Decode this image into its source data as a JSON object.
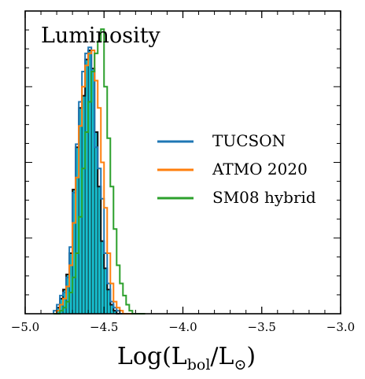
{
  "chart_data": {
    "type": "histogram",
    "title": "Luminosity",
    "xlabel_main": "Log(L",
    "xlabel_sub1": "bol",
    "xlabel_mid": "/L",
    "xlabel_sub2": "⊙",
    "xlabel_close": ")",
    "xlim": [
      -5.0,
      -3.0
    ],
    "ylim": [
      0,
      1.0
    ],
    "xticks": [
      -5.0,
      -4.5,
      -4.0,
      -3.5,
      -3.0
    ],
    "xtick_labels": [
      "−5.0",
      "−4.5",
      "−4.0",
      "−3.5",
      "−3.0"
    ],
    "legend_position": "center-right",
    "grid": false,
    "bin_edges": [
      -4.82,
      -4.8,
      -4.78,
      -4.76,
      -4.74,
      -4.72,
      -4.7,
      -4.68,
      -4.66,
      -4.64,
      -4.62,
      -4.6,
      -4.58,
      -4.56,
      -4.54,
      -4.52,
      -4.5,
      -4.48,
      -4.46,
      -4.44,
      -4.42,
      -4.4,
      -4.38,
      -4.36,
      -4.34,
      -4.32,
      -4.3,
      -4.28,
      -4.26,
      -4.24
    ],
    "filled": {
      "color": "#17becf",
      "edge": "#111111",
      "values": [
        0.0,
        0.02,
        0.05,
        0.08,
        0.13,
        0.2,
        0.41,
        0.55,
        0.68,
        0.72,
        0.84,
        0.87,
        0.81,
        0.6,
        0.42,
        0.24,
        0.15,
        0.08,
        0.03,
        0.01,
        0.0,
        0.0,
        0.0,
        0.0,
        0.0,
        0.0,
        0.0,
        0.0,
        0.0
      ]
    },
    "series": [
      {
        "name": "TUCSON",
        "color": "#1f77b4",
        "values": [
          0.01,
          0.03,
          0.06,
          0.07,
          0.12,
          0.22,
          0.4,
          0.56,
          0.7,
          0.8,
          0.86,
          0.88,
          0.8,
          0.55,
          0.48,
          0.38,
          0.2,
          0.1,
          0.04,
          0.02,
          0.01,
          0.0,
          0.0,
          0.0,
          0.0,
          0.0,
          0.0,
          0.0,
          0.0
        ]
      },
      {
        "name": "ATMO 2020",
        "color": "#ff7f0e",
        "values": [
          0.0,
          0.01,
          0.03,
          0.05,
          0.09,
          0.16,
          0.3,
          0.45,
          0.62,
          0.75,
          0.82,
          0.86,
          0.87,
          0.77,
          0.68,
          0.5,
          0.35,
          0.2,
          0.1,
          0.04,
          0.02,
          0.01,
          0.0,
          0.0,
          0.0,
          0.0,
          0.0,
          0.0,
          0.0
        ]
      },
      {
        "name": "SM08 hybrid",
        "color": "#2ca02c",
        "values": [
          0.0,
          0.0,
          0.01,
          0.02,
          0.04,
          0.07,
          0.12,
          0.2,
          0.32,
          0.48,
          0.6,
          0.7,
          0.8,
          0.86,
          0.9,
          0.94,
          0.75,
          0.58,
          0.42,
          0.28,
          0.16,
          0.1,
          0.06,
          0.03,
          0.01,
          0.0,
          0.0,
          0.0,
          0.0
        ]
      }
    ]
  }
}
